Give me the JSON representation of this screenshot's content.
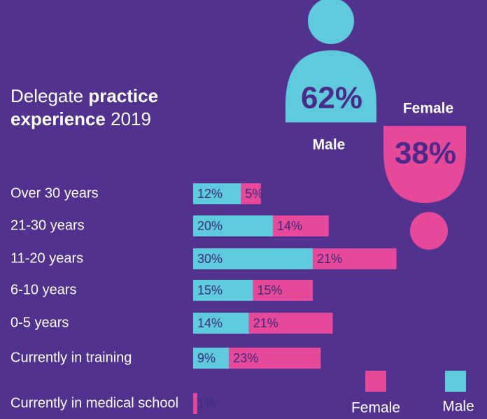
{
  "chart_data": {
    "type": "stacked-bar-horizontal",
    "title_parts": [
      {
        "text": "Delegate",
        "bold": false
      },
      {
        "text": "practice",
        "bold": true
      },
      {
        "text": "experience",
        "bold": true
      },
      {
        "text": "2019",
        "bold": false
      }
    ],
    "categories": [
      "Over 30 years",
      "21-30 years",
      "11-20 years",
      "6-10 years",
      "0-5 years",
      "Currently in training",
      "Currently in medical school"
    ],
    "series": [
      {
        "name": "Male",
        "color": "#5ecbdc",
        "values": [
          12,
          20,
          30,
          15,
          14,
          9,
          null
        ],
        "value_labels": [
          "12%",
          "20%",
          "30%",
          "15%",
          "14%",
          "9%",
          null
        ]
      },
      {
        "name": "Female",
        "color": "#e6489a",
        "values": [
          5,
          14,
          21,
          15,
          21,
          23,
          1
        ],
        "value_labels": [
          "5%",
          "14%",
          "21%",
          "15%",
          "21%",
          "23%",
          "1%"
        ]
      }
    ],
    "gender": [
      {
        "name": "Male",
        "value": 62,
        "value_label": "62%",
        "color": "#5ecbdc"
      },
      {
        "name": "Female",
        "value": 38,
        "value_label": "38%",
        "color": "#e6489a"
      }
    ]
  }
}
